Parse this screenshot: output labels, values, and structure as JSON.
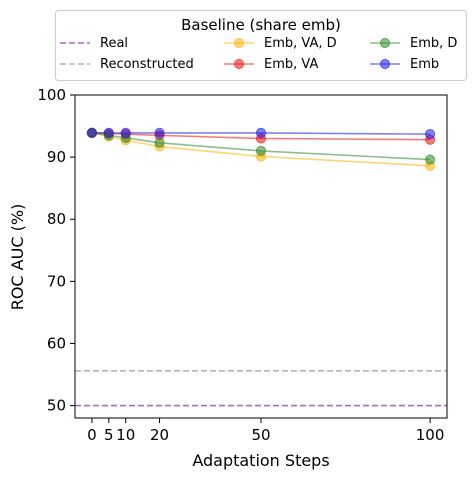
{
  "chart_data": {
    "type": "line",
    "xlabel": "Adaptation Steps",
    "ylabel": "ROC AUC (%)",
    "x": [
      0,
      5,
      10,
      20,
      50,
      100
    ],
    "x_ticks": [
      0,
      5,
      10,
      20,
      50,
      100
    ],
    "y_ticks": [
      50,
      60,
      70,
      80,
      90,
      100
    ],
    "xlim": [
      -5,
      105
    ],
    "ylim": [
      48,
      100
    ],
    "grid": false,
    "legend": {
      "title": "Baseline (share emb)",
      "placement": "top, above plot, 3 columns",
      "entries": [
        "Real",
        "Reconstructed",
        "Emb, VA, D",
        "Emb, VA",
        "Emb, D",
        "Emb"
      ]
    },
    "reference_lines": [
      {
        "name": "Real",
        "value": 50,
        "color": "#9b4fb5",
        "style": "dashed"
      },
      {
        "name": "Reconstructed",
        "value": 55.6,
        "color": "#a8a8a8",
        "style": "dashed"
      }
    ],
    "series": [
      {
        "name": "Emb, VA, D",
        "color": "#ffb000",
        "values": [
          93.9,
          93.3,
          92.7,
          91.7,
          90.1,
          88.6
        ]
      },
      {
        "name": "Emb, VA",
        "color": "#ee1111",
        "values": [
          93.9,
          93.8,
          93.7,
          93.5,
          93.0,
          92.8
        ]
      },
      {
        "name": "Emb, D",
        "color": "#2a8a2a",
        "values": [
          93.9,
          93.5,
          93.1,
          92.3,
          91.0,
          89.6
        ]
      },
      {
        "name": "Emb",
        "color": "#1a1aee",
        "values": [
          93.9,
          93.9,
          93.9,
          93.9,
          93.9,
          93.7
        ]
      }
    ]
  }
}
